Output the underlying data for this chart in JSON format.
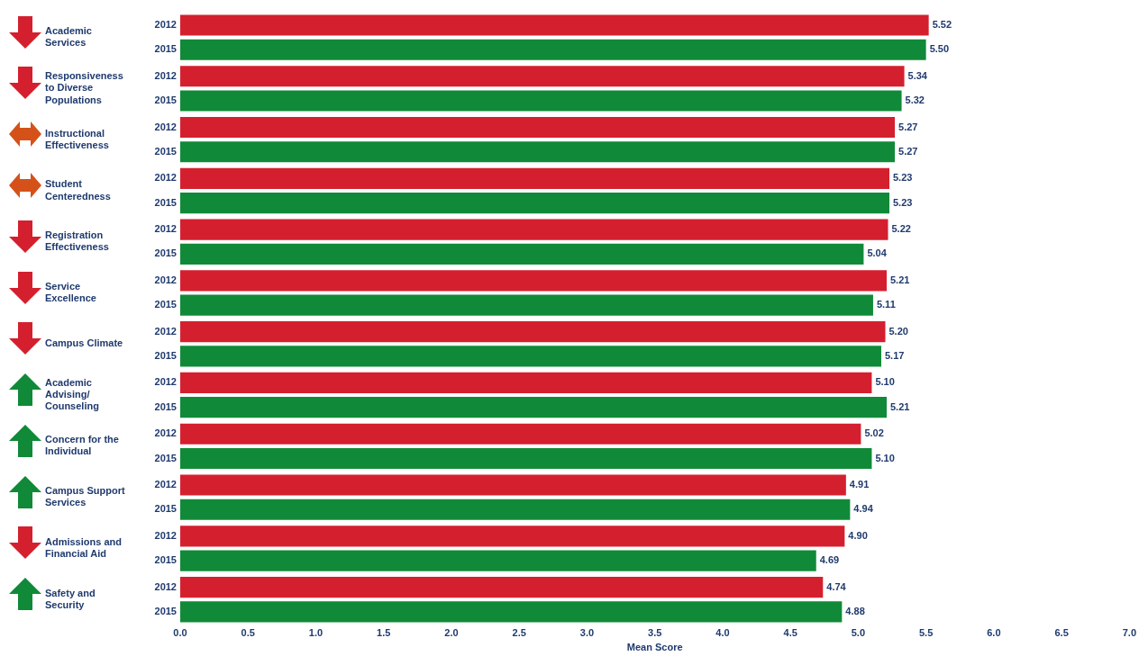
{
  "chart_data": {
    "type": "bar",
    "orientation": "horizontal",
    "xlabel": "Mean Score",
    "categories": [
      "Academic Services",
      "Responsiveness to Diverse Populations",
      "Instructional Effectiveness",
      "Student Centeredness",
      "Registration Effectiveness",
      "Service Excellence",
      "Campus Climate",
      "Academic Advising/ Counseling",
      "Concern for the Individual",
      "Campus Support Services",
      "Admissions and Financial Aid",
      "Safety and Security"
    ],
    "series": [
      {
        "name": "2012",
        "color": "#d4202e",
        "values": [
          5.52,
          5.34,
          5.27,
          5.23,
          5.22,
          5.21,
          5.2,
          5.1,
          5.02,
          4.91,
          4.9,
          4.74
        ],
        "value_labels": [
          "5.52",
          "5.34",
          "5.27",
          "5.23",
          "5.22",
          "5.21",
          "5.20",
          "5.10",
          "5.02",
          "4.91",
          "4.90",
          "4.74"
        ]
      },
      {
        "name": "2015",
        "color": "#108a38",
        "values": [
          5.5,
          5.32,
          5.27,
          5.23,
          5.04,
          5.11,
          5.17,
          5.21,
          5.1,
          4.94,
          4.69,
          4.88
        ],
        "value_labels": [
          "5.50",
          "5.32",
          "5.27",
          "5.23",
          "5.04",
          "5.11",
          "5.17",
          "5.21",
          "5.10",
          "4.94",
          "4.69",
          "4.88"
        ]
      }
    ],
    "xlim": [
      0,
      7
    ],
    "xticks": [
      {
        "value": 0,
        "label": "0.0"
      },
      {
        "value": 0.5,
        "label": "0.5"
      },
      {
        "value": 1,
        "label": "1.0"
      },
      {
        "value": 1.5,
        "label": "1.5"
      },
      {
        "value": 2,
        "label": "2.0"
      },
      {
        "value": 2.5,
        "label": "2.5"
      },
      {
        "value": 3,
        "label": "3.0"
      },
      {
        "value": 3.5,
        "label": "3.5"
      },
      {
        "value": 4,
        "label": "4.0"
      },
      {
        "value": 4.5,
        "label": "4.5"
      },
      {
        "value": 5,
        "label": "5.0"
      },
      {
        "value": 5.5,
        "label": "5.5"
      },
      {
        "value": 6,
        "label": "6.0"
      },
      {
        "value": 6.5,
        "label": "6.5"
      },
      {
        "value": 7,
        "label": "7.0"
      }
    ],
    "grid": false,
    "legend": false
  }
}
